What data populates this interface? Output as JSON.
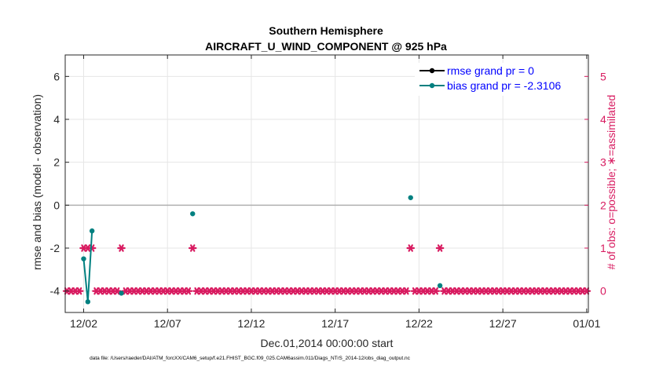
{
  "colors": {
    "rmse": "#000000",
    "bias": "#008080",
    "obs": "#d81b60",
    "legend_text": "#0000ff",
    "grid": "#e6e6e6",
    "zero_line": "#b0b0b0"
  },
  "footer": "data file: /Users/raeder/DAI/ATM_forcXX/CAM6_setup/f.e21.FHIST_BGC.f09_025.CAM6assim.011/Diags_NTrS_2014-12/obs_diag_output.nc",
  "chart_data": {
    "type": "line",
    "title": "Southern Hemisphere",
    "subtitle": "AIRCRAFT_U_WIND_COMPONENT @ 925 hPa",
    "xlabel": "Dec.01,2014 00:00:00 start",
    "ylabel_left": "rmse and bias (model - observation)",
    "ylabel_right": "# of obs: o=possible; ∗=assimilated",
    "x_tick_labels": [
      "12/02",
      "12/07",
      "12/12",
      "12/17",
      "12/22",
      "12/27",
      "01/01"
    ],
    "x_tick_values": [
      1,
      6,
      11,
      16,
      21,
      26,
      31
    ],
    "xlim": [
      -0.1,
      31.1
    ],
    "ylim_left": [
      -5,
      7
    ],
    "ylim_right": [
      -0.5,
      5.5
    ],
    "y_ticks_left": [
      -4,
      -2,
      0,
      2,
      4,
      6
    ],
    "y_ticks_right": [
      0,
      1,
      2,
      3,
      4,
      5
    ],
    "grid": true,
    "legend_placement": "top-right",
    "legend": [
      "rmse grand pr = 0",
      "bias grand pr = -2.3106"
    ],
    "series": [
      {
        "name": "bias grand pr = -2.3106",
        "axis": "left",
        "segments": [
          {
            "x": [
              1.0,
              1.25,
              1.5
            ],
            "y": [
              -2.5,
              -4.5,
              -1.2
            ]
          },
          {
            "x": [
              3.25
            ],
            "y": [
              -4.1
            ]
          },
          {
            "x": [
              7.5
            ],
            "y": [
              -0.4
            ]
          },
          {
            "x": [
              20.5
            ],
            "y": [
              0.35
            ]
          },
          {
            "x": [
              22.25
            ],
            "y": [
              -3.75
            ]
          }
        ]
      },
      {
        "name": "# of obs",
        "axis": "right",
        "marker": "asterisk",
        "x_start": -0.5,
        "x_step": 0.25,
        "count": 127,
        "value_one_at": [
          1.0,
          1.25,
          1.5,
          3.25,
          7.5,
          20.5,
          22.25
        ],
        "baseline": 0
      }
    ]
  }
}
